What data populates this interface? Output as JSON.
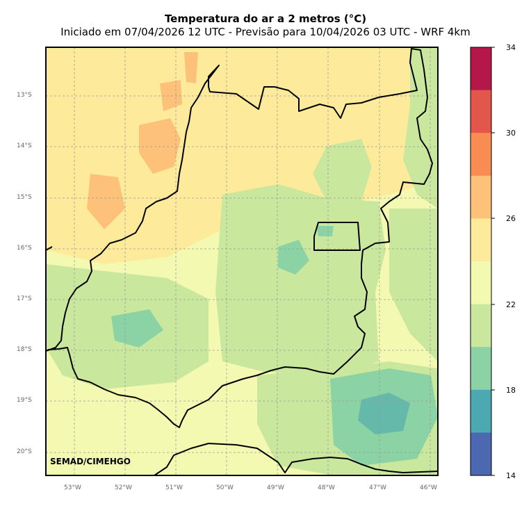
{
  "header": {
    "title": "Temperatura do ar a 2 metros (°C)",
    "subtitle": "Iniciado em 07/04/2026 12 UTC - Previsão para 10/04/2026 03 UTC - WRF 4km"
  },
  "credit": "SEMAD/CIMEHGO",
  "axes": {
    "lat_labels": [
      "13°S",
      "14°S",
      "15°S",
      "16°S",
      "17°S",
      "18°S",
      "19°S",
      "20°S"
    ],
    "lon_labels": [
      "53°W",
      "52°W",
      "51°W",
      "50°W",
      "49°W",
      "48°W",
      "47°W",
      "46°W"
    ]
  },
  "colorbar": {
    "ticks": [
      "34",
      "30",
      "26",
      "22",
      "18",
      "14"
    ],
    "colors": [
      "#b5174a",
      "#e2564b",
      "#f98c52",
      "#fdc17a",
      "#fdeb9b",
      "#f4f9b2",
      "#c9e89e",
      "#8bd2a4",
      "#4ca8b1",
      "#4b68b0"
    ]
  },
  "palette": {
    "c22_24": "#f4f9b2",
    "c24_26": "#fdeb9b",
    "c26_28": "#fdc17a",
    "c20_22": "#c9e89e",
    "c18_20": "#8bd2a4",
    "c16_18": "#4ca8b1"
  }
}
